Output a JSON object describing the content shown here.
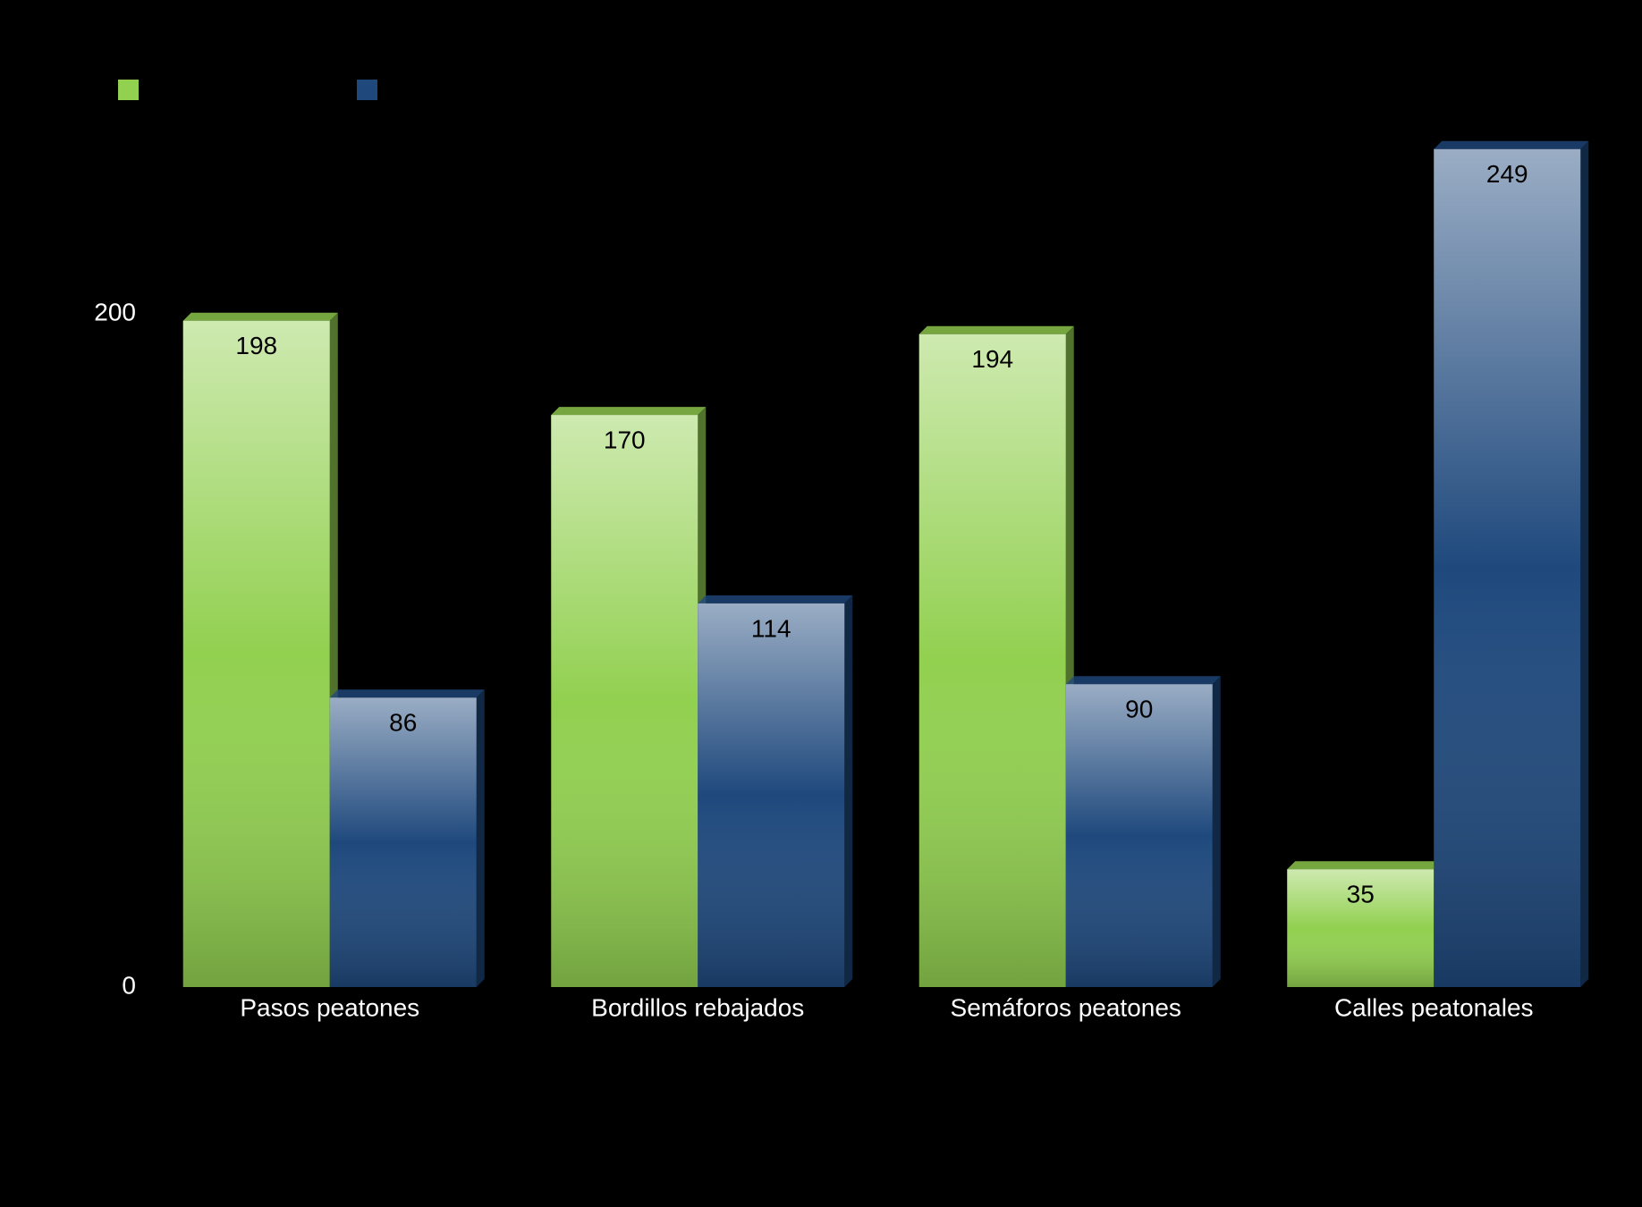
{
  "chart_data": {
    "type": "bar",
    "categories": [
      "Pasos peatones",
      "Bordillos rebajados",
      "Semáforos peatones",
      "Calles peatonales"
    ],
    "series": [
      {
        "color": "#92d050",
        "values": [
          198,
          170,
          194,
          35
        ]
      },
      {
        "color": "#1f497d",
        "values": [
          86,
          114,
          90,
          249
        ]
      }
    ],
    "ylim": [
      0,
      250
    ],
    "yticks": [
      0,
      200
    ]
  }
}
